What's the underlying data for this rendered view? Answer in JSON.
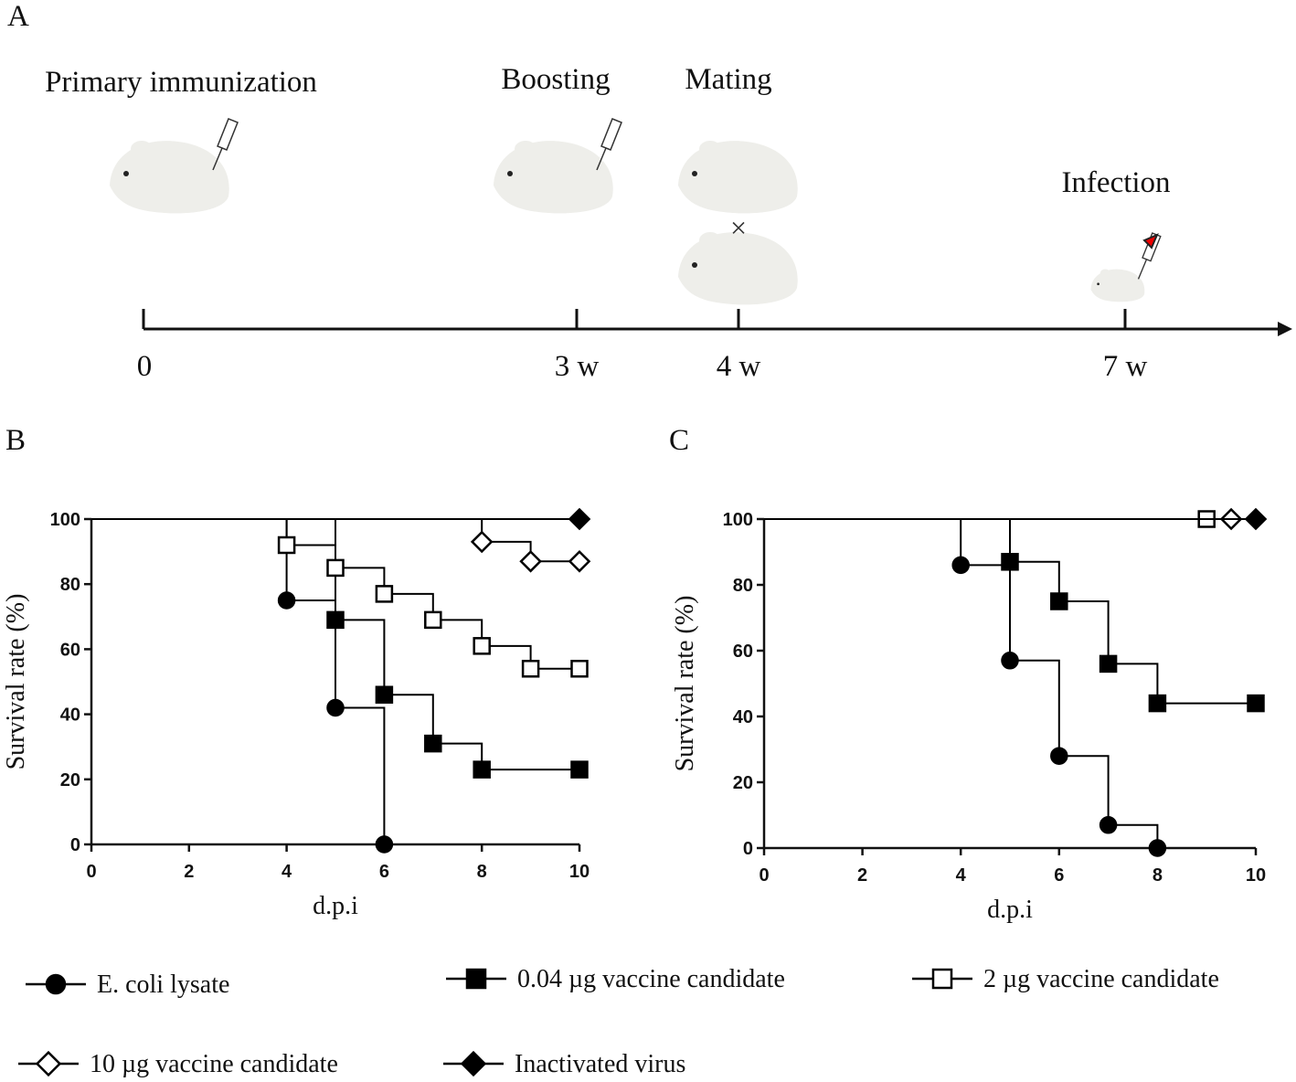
{
  "panels": [
    "A",
    "B",
    "C"
  ],
  "timeline": {
    "events": [
      {
        "label": "Primary immunization",
        "tick": "0"
      },
      {
        "label": "Boosting",
        "tick": "3 w"
      },
      {
        "label": "Mating",
        "tick": "4 w"
      },
      {
        "label": "Infection",
        "tick": "7 w"
      }
    ]
  },
  "chart_data": [
    {
      "type": "line",
      "step": true,
      "ylabel": "Survival rate (%)",
      "xlabel": "d.p.i",
      "xlim": [
        0,
        10
      ],
      "xticks": [
        0,
        2,
        4,
        6,
        8,
        10
      ],
      "ylim": [
        0,
        100
      ],
      "yticks": [
        0,
        20,
        40,
        60,
        80,
        100
      ],
      "series": [
        {
          "name": "E. coli lysate",
          "color": "#000000",
          "marker": "circle",
          "marker_fill": "#000000",
          "x": [
            0,
            4,
            5,
            6
          ],
          "values": [
            100,
            75,
            42,
            0
          ]
        },
        {
          "name": "0.04  µg vaccine candidate",
          "color": "#000000",
          "marker": "square",
          "marker_fill": "#000000",
          "x": [
            0,
            5,
            6,
            7,
            8,
            10
          ],
          "values": [
            100,
            69,
            46,
            31,
            23,
            23
          ]
        },
        {
          "name": "2 µg vaccine candidate",
          "color": "#000000",
          "marker": "square",
          "marker_fill": "#ffffff",
          "x": [
            0,
            4,
            5,
            6,
            7,
            8,
            9,
            10
          ],
          "values": [
            100,
            92,
            85,
            77,
            69,
            61,
            54,
            54
          ]
        },
        {
          "name": "10 µg vaccine candidate",
          "color": "#000000",
          "marker": "diamond",
          "marker_fill": "#ffffff",
          "x": [
            0,
            8,
            9,
            10
          ],
          "values": [
            100,
            93,
            87,
            87
          ]
        },
        {
          "name": "Inactivated virus",
          "color": "#000000",
          "marker": "diamond",
          "marker_fill": "#000000",
          "x": [
            0,
            10
          ],
          "values": [
            100,
            100
          ]
        }
      ]
    },
    {
      "type": "line",
      "step": true,
      "ylabel": "Survival rate (%)",
      "xlabel": "d.p.i",
      "xlim": [
        0,
        10
      ],
      "xticks": [
        0,
        2,
        4,
        6,
        8,
        10
      ],
      "ylim": [
        0,
        100
      ],
      "yticks": [
        0,
        20,
        40,
        60,
        80,
        100
      ],
      "series": [
        {
          "color": "#000000",
          "marker": "circle",
          "marker_fill": "#000000",
          "x": [
            0,
            4,
            5,
            6,
            7,
            8
          ],
          "values": [
            100,
            86,
            57,
            28,
            7,
            0
          ]
        },
        {
          "color": "#000000",
          "marker": "square",
          "marker_fill": "#000000",
          "x": [
            0,
            5,
            6,
            7,
            8,
            10
          ],
          "values": [
            100,
            87,
            75,
            56,
            44,
            44
          ]
        },
        {
          "color": "#000000",
          "marker": "square",
          "marker_fill": "#ffffff",
          "x": [
            0,
            9
          ],
          "values": [
            100,
            100
          ]
        },
        {
          "color": "#000000",
          "marker": "diamond",
          "marker_fill": "#ffffff",
          "x": [
            0,
            9.5
          ],
          "values": [
            100,
            100
          ]
        },
        {
          "color": "#000000",
          "marker": "diamond",
          "marker_fill": "#000000",
          "x": [
            0,
            10
          ],
          "values": [
            100,
            100
          ]
        }
      ]
    }
  ]
}
